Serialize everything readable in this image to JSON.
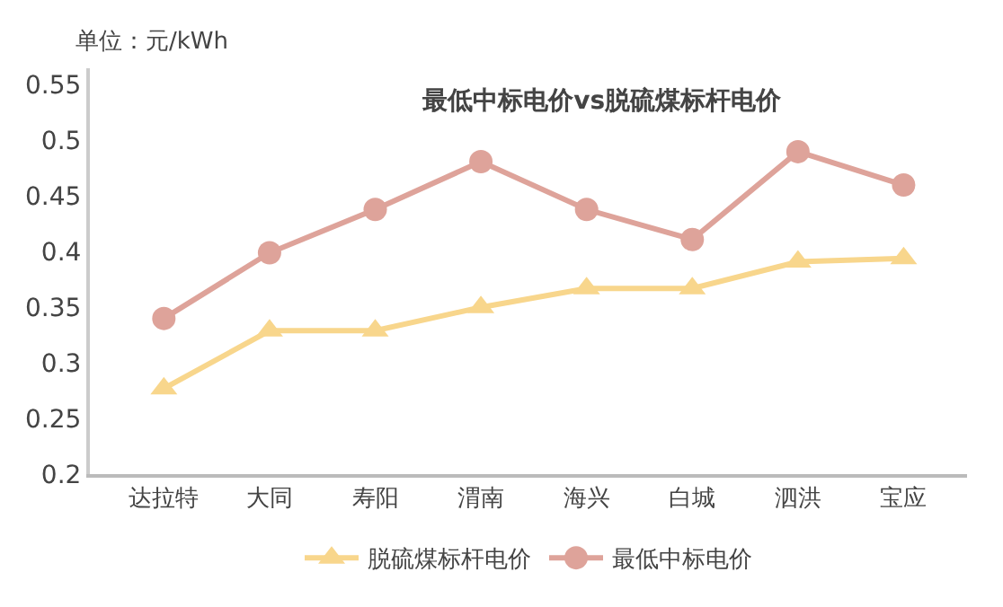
{
  "chart_data": {
    "type": "line",
    "title": "最低中标电价vs脱硫煤标杆电价",
    "ylabel": "单位：元/kWh",
    "categories": [
      "达拉特",
      "大同",
      "寿阳",
      "渭南",
      "海兴",
      "白城",
      "泗洪",
      "宝应"
    ],
    "series": [
      {
        "name": "脱硫煤标杆电价",
        "color": "#f8d68c",
        "marker": "triangle",
        "values": [
          0.277,
          0.329,
          0.329,
          0.35,
          0.367,
          0.367,
          0.391,
          0.394
        ]
      },
      {
        "name": "最低中标电价",
        "color": "#dea39a",
        "marker": "circle",
        "values": [
          0.34,
          0.399,
          0.438,
          0.481,
          0.438,
          0.411,
          0.49,
          0.46
        ]
      }
    ],
    "ylim": [
      0.2,
      0.565
    ],
    "yticks": [
      0.2,
      0.25,
      0.3,
      0.35,
      0.4,
      0.45,
      0.5,
      0.55
    ],
    "grid": false,
    "legend": "bottom",
    "line_style": "solid"
  }
}
